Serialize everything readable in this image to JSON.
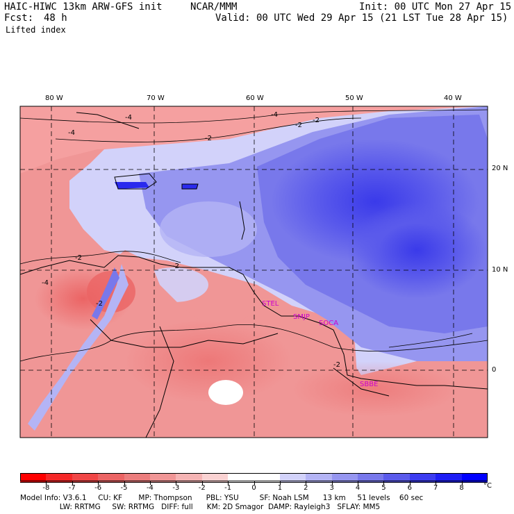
{
  "header": {
    "model_title": "HAIC-HIWC 13km ARW-GFS init",
    "org": "NCAR/MMM",
    "init_time": "Init: 00 UTC Mon 27 Apr 15",
    "fcst_label": "Fcst:",
    "fcst_value": "48 h",
    "valid_time": "Valid: 00 UTC Wed 29 Apr 15 (21 LST Tue 28 Apr 15)",
    "field_name": "Lifted index"
  },
  "map": {
    "longitude_labels": [
      "80 W",
      "70 W",
      "60 W",
      "50 W",
      "40 W"
    ],
    "latitude_labels": [
      "20 N",
      "10 N",
      "0"
    ],
    "stations": [
      "STEL",
      "SMJP",
      "SOCA",
      "SBBE"
    ],
    "station_color": "#cc00cc",
    "contour_labels": [
      "-4",
      "-2",
      "-4",
      "-2",
      "-4",
      "-2",
      "-2",
      "-2",
      "-4",
      "-2",
      "-2"
    ]
  },
  "colorbar": {
    "unit": "°C",
    "ticks": [
      "-8",
      "-7",
      "-6",
      "-5",
      "-4",
      "-3",
      "-2",
      "-1",
      "0",
      "1",
      "2",
      "3",
      "4",
      "5",
      "6",
      "7",
      "8"
    ],
    "colors": [
      "#ff0000",
      "#f52828",
      "#f04646",
      "#eb6464",
      "#eb7d7d",
      "#f09696",
      "#f5b4b4",
      "#fad2d2",
      "#ffffff",
      "#ffffff",
      "#d2d2fa",
      "#b4b4f5",
      "#9696f0",
      "#7878eb",
      "#5a5aeb",
      "#3c3cf0",
      "#1e1ef5",
      "#0000ff"
    ]
  },
  "footer": {
    "line1": "Model Info: V3.6.1     CU: KF       MP: Thompson      PBL: YSU         SF: Noah LSM      13 km     51 levels    60 sec",
    "line2": "                 LW: RRTMG     SW: RRTMG   DIFF: full      KM: 2D Smagor  DAMP: Rayleigh3   SFLAY: MM5"
  }
}
